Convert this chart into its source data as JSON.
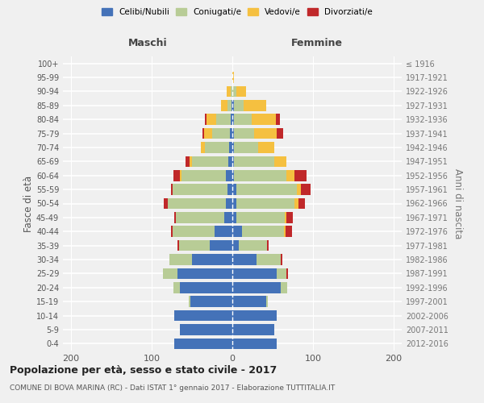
{
  "age_groups": [
    "0-4",
    "5-9",
    "10-14",
    "15-19",
    "20-24",
    "25-29",
    "30-34",
    "35-39",
    "40-44",
    "45-49",
    "50-54",
    "55-59",
    "60-64",
    "65-69",
    "70-74",
    "75-79",
    "80-84",
    "85-89",
    "90-94",
    "95-99",
    "100+"
  ],
  "birth_years": [
    "2012-2016",
    "2007-2011",
    "2002-2006",
    "1997-2001",
    "1992-1996",
    "1987-1991",
    "1982-1986",
    "1977-1981",
    "1972-1976",
    "1967-1971",
    "1962-1966",
    "1957-1961",
    "1952-1956",
    "1947-1951",
    "1942-1946",
    "1937-1941",
    "1932-1936",
    "1927-1931",
    "1922-1926",
    "1917-1921",
    "≤ 1916"
  ],
  "maschi": {
    "celibi": [
      72,
      65,
      72,
      52,
      65,
      68,
      50,
      28,
      22,
      10,
      8,
      6,
      8,
      5,
      4,
      3,
      2,
      1,
      0,
      0,
      0
    ],
    "coniugati": [
      0,
      0,
      0,
      2,
      8,
      18,
      28,
      38,
      52,
      60,
      72,
      68,
      55,
      45,
      30,
      22,
      18,
      5,
      2,
      0,
      0
    ],
    "vedovi": [
      0,
      0,
      0,
      0,
      0,
      0,
      0,
      0,
      0,
      0,
      0,
      0,
      2,
      3,
      5,
      10,
      12,
      8,
      5,
      0,
      0
    ],
    "divorziati": [
      0,
      0,
      0,
      0,
      0,
      0,
      0,
      2,
      2,
      2,
      5,
      2,
      8,
      5,
      0,
      2,
      2,
      0,
      0,
      0,
      0
    ]
  },
  "femmine": {
    "nubili": [
      55,
      52,
      55,
      42,
      60,
      55,
      30,
      8,
      12,
      5,
      5,
      5,
      2,
      2,
      2,
      2,
      2,
      2,
      0,
      0,
      0
    ],
    "coniugate": [
      0,
      0,
      0,
      2,
      8,
      12,
      30,
      35,
      52,
      60,
      72,
      75,
      65,
      50,
      30,
      25,
      22,
      12,
      5,
      0,
      0
    ],
    "vedove": [
      0,
      0,
      0,
      0,
      0,
      0,
      0,
      0,
      2,
      2,
      5,
      5,
      10,
      15,
      20,
      28,
      30,
      28,
      12,
      2,
      0
    ],
    "divorziate": [
      0,
      0,
      0,
      0,
      0,
      2,
      2,
      2,
      8,
      8,
      8,
      12,
      15,
      0,
      0,
      8,
      5,
      0,
      0,
      0,
      0
    ]
  },
  "colors": {
    "celibi": "#4472b8",
    "coniugati": "#b8cc96",
    "vedovi": "#f5c040",
    "divorziati": "#c0282a"
  },
  "xlim": 210,
  "title": "Popolazione per età, sesso e stato civile - 2017",
  "subtitle": "COMUNE DI BOVA MARINA (RC) - Dati ISTAT 1° gennaio 2017 - Elaborazione TUTTITALIA.IT",
  "ylabel_left": "Fasce di età",
  "ylabel_right": "Anni di nascita",
  "legend_labels": [
    "Celibi/Nubili",
    "Coniugati/e",
    "Vedovi/e",
    "Divorziati/e"
  ],
  "header_maschi": "Maschi",
  "header_femmine": "Femmine",
  "background_color": "#f0f0f0"
}
